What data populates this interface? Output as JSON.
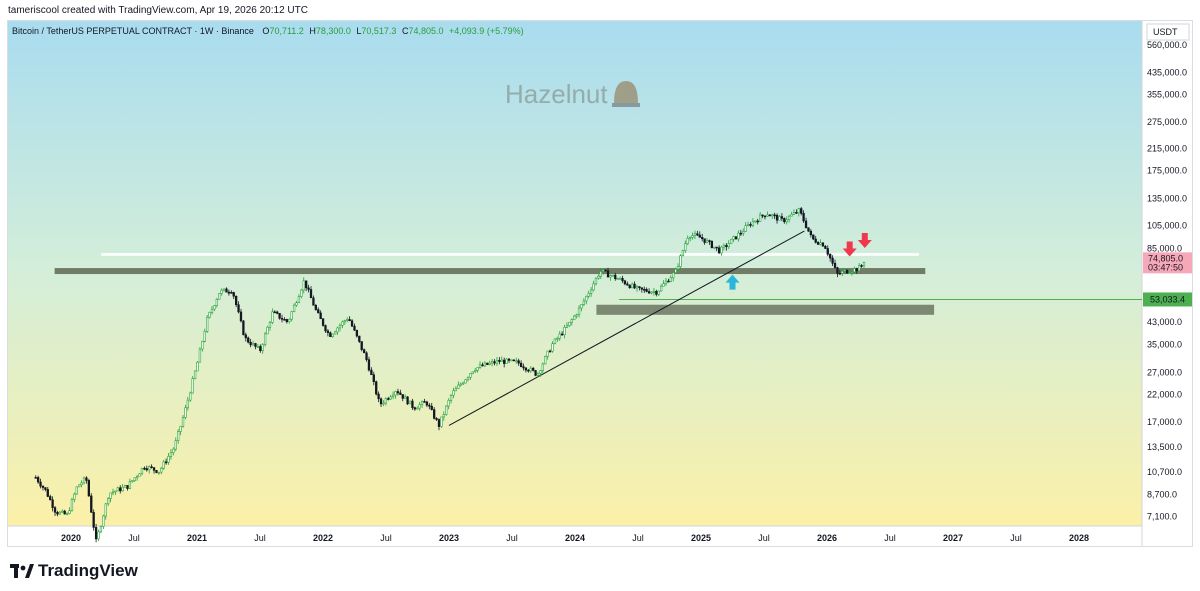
{
  "header": {
    "credit": "tameriscool created with TradingView.com, Apr 19, 2026 20:12 UTC"
  },
  "legend": {
    "symbol": "Bitcoin / TetherUS PERPETUAL CONTRACT · 1W · Binance",
    "open_label": "O",
    "open": "70,711.2",
    "high_label": "H",
    "high": "78,300.0",
    "low_label": "L",
    "low": "70,517.3",
    "close_label": "C",
    "close": "74,805.0",
    "change": "+4,093.9 (+5.79%)"
  },
  "watermark": "Hazelnut",
  "currency_label": "USDT",
  "footer_brand": "TradingView",
  "colors": {
    "up": "#26a33a",
    "down": "#131722",
    "price_badge": "#f7a8b8",
    "level_badge": "#4caf50",
    "arrow_up": "#29b6d8",
    "arrow_down": "#f0384d",
    "zone": "#6b7560"
  },
  "chart_data": {
    "type": "candlestick",
    "scale": "log",
    "ylim": [
      6500,
      700000
    ],
    "y_ticks": [
      560000,
      435000,
      355000,
      275000,
      215000,
      175000,
      135000,
      105000,
      85000,
      43000,
      35000,
      27000,
      22000,
      17000,
      13500,
      10700,
      8700,
      7100
    ],
    "y_tick_labels": [
      "560,000.0",
      "435,000.0",
      "355,000.0",
      "275,000.0",
      "215,000.0",
      "175,000.0",
      "135,000.0",
      "105,000.0",
      "85,000.0",
      "43,000.0",
      "35,000.0",
      "27,000.0",
      "22,000.0",
      "17,000.0",
      "13,500.0",
      "10,700.0",
      "8,700.0",
      "7,100.0"
    ],
    "x_range": [
      2019.5,
      2028.5
    ],
    "x_ticks": [
      {
        "t": 2020.0,
        "label": "2020",
        "major": true
      },
      {
        "t": 2020.5,
        "label": "Jul",
        "major": false
      },
      {
        "t": 2021.0,
        "label": "2021",
        "major": true
      },
      {
        "t": 2021.5,
        "label": "Jul",
        "major": false
      },
      {
        "t": 2022.0,
        "label": "2022",
        "major": true
      },
      {
        "t": 2022.5,
        "label": "Jul",
        "major": false
      },
      {
        "t": 2023.0,
        "label": "2023",
        "major": true
      },
      {
        "t": 2023.5,
        "label": "Jul",
        "major": false
      },
      {
        "t": 2024.0,
        "label": "2024",
        "major": true
      },
      {
        "t": 2024.5,
        "label": "Jul",
        "major": false
      },
      {
        "t": 2025.0,
        "label": "2025",
        "major": true
      },
      {
        "t": 2025.5,
        "label": "Jul",
        "major": false
      },
      {
        "t": 2026.0,
        "label": "2026",
        "major": true
      },
      {
        "t": 2026.5,
        "label": "Jul",
        "major": false
      },
      {
        "t": 2027.0,
        "label": "2027",
        "major": true
      },
      {
        "t": 2027.5,
        "label": "Jul",
        "major": false
      },
      {
        "t": 2028.0,
        "label": "2028",
        "major": true
      }
    ],
    "price_path": [
      [
        2019.72,
        10200
      ],
      [
        2019.8,
        9000
      ],
      [
        2019.88,
        7400
      ],
      [
        2019.97,
        7200
      ],
      [
        2020.05,
        9400
      ],
      [
        2020.12,
        10100
      ],
      [
        2020.2,
        5600
      ],
      [
        2020.3,
        8800
      ],
      [
        2020.45,
        9400
      ],
      [
        2020.58,
        11300
      ],
      [
        2020.7,
        10800
      ],
      [
        2020.82,
        13500
      ],
      [
        2020.9,
        18500
      ],
      [
        2021.0,
        29000
      ],
      [
        2021.08,
        44000
      ],
      [
        2021.18,
        57000
      ],
      [
        2021.28,
        58000
      ],
      [
        2021.38,
        37000
      ],
      [
        2021.5,
        33000
      ],
      [
        2021.6,
        47000
      ],
      [
        2021.72,
        43000
      ],
      [
        2021.85,
        63000
      ],
      [
        2021.95,
        47000
      ],
      [
        2022.05,
        38000
      ],
      [
        2022.2,
        45000
      ],
      [
        2022.35,
        30000
      ],
      [
        2022.45,
        20000
      ],
      [
        2022.58,
        23000
      ],
      [
        2022.72,
        19500
      ],
      [
        2022.82,
        20500
      ],
      [
        2022.92,
        16500
      ],
      [
        2023.02,
        22000
      ],
      [
        2023.2,
        28000
      ],
      [
        2023.4,
        30000
      ],
      [
        2023.55,
        29500
      ],
      [
        2023.7,
        26500
      ],
      [
        2023.82,
        35000
      ],
      [
        2023.95,
        42000
      ],
      [
        2024.05,
        50000
      ],
      [
        2024.2,
        69000
      ],
      [
        2024.35,
        64000
      ],
      [
        2024.5,
        58000
      ],
      [
        2024.65,
        57000
      ],
      [
        2024.8,
        69000
      ],
      [
        2024.9,
        97000
      ],
      [
        2025.0,
        94000
      ],
      [
        2025.15,
        83000
      ],
      [
        2025.28,
        95000
      ],
      [
        2025.4,
        108000
      ],
      [
        2025.52,
        118000
      ],
      [
        2025.65,
        110000
      ],
      [
        2025.78,
        121000
      ],
      [
        2025.88,
        93000
      ],
      [
        2025.98,
        88000
      ],
      [
        2026.08,
        67000
      ],
      [
        2026.15,
        69000
      ],
      [
        2026.25,
        70700
      ],
      [
        2026.3,
        74805
      ]
    ],
    "close": 74805,
    "close_label": "74,805.0",
    "countdown": "03:47:50",
    "support_line": {
      "value": 53033.4,
      "label": "53,033.4",
      "from": 2024.35
    },
    "resistance_band": {
      "value": 69000,
      "from": 2019.87,
      "to": 2026.78
    },
    "upper_line": {
      "value": 80500,
      "from": 2020.24,
      "to": 2026.73
    },
    "demand_zone": {
      "top": 50500,
      "bottom": 46000,
      "from": 2024.17,
      "to": 2026.85
    },
    "trendline": [
      [
        2023.0,
        16500
      ],
      [
        2025.82,
        100000
      ]
    ],
    "markers": [
      {
        "type": "arrow-up",
        "t": 2025.25,
        "value": 62000
      },
      {
        "type": "arrow-down",
        "t": 2026.18,
        "value": 85000
      },
      {
        "type": "arrow-down",
        "t": 2026.3,
        "value": 92000
      }
    ]
  }
}
